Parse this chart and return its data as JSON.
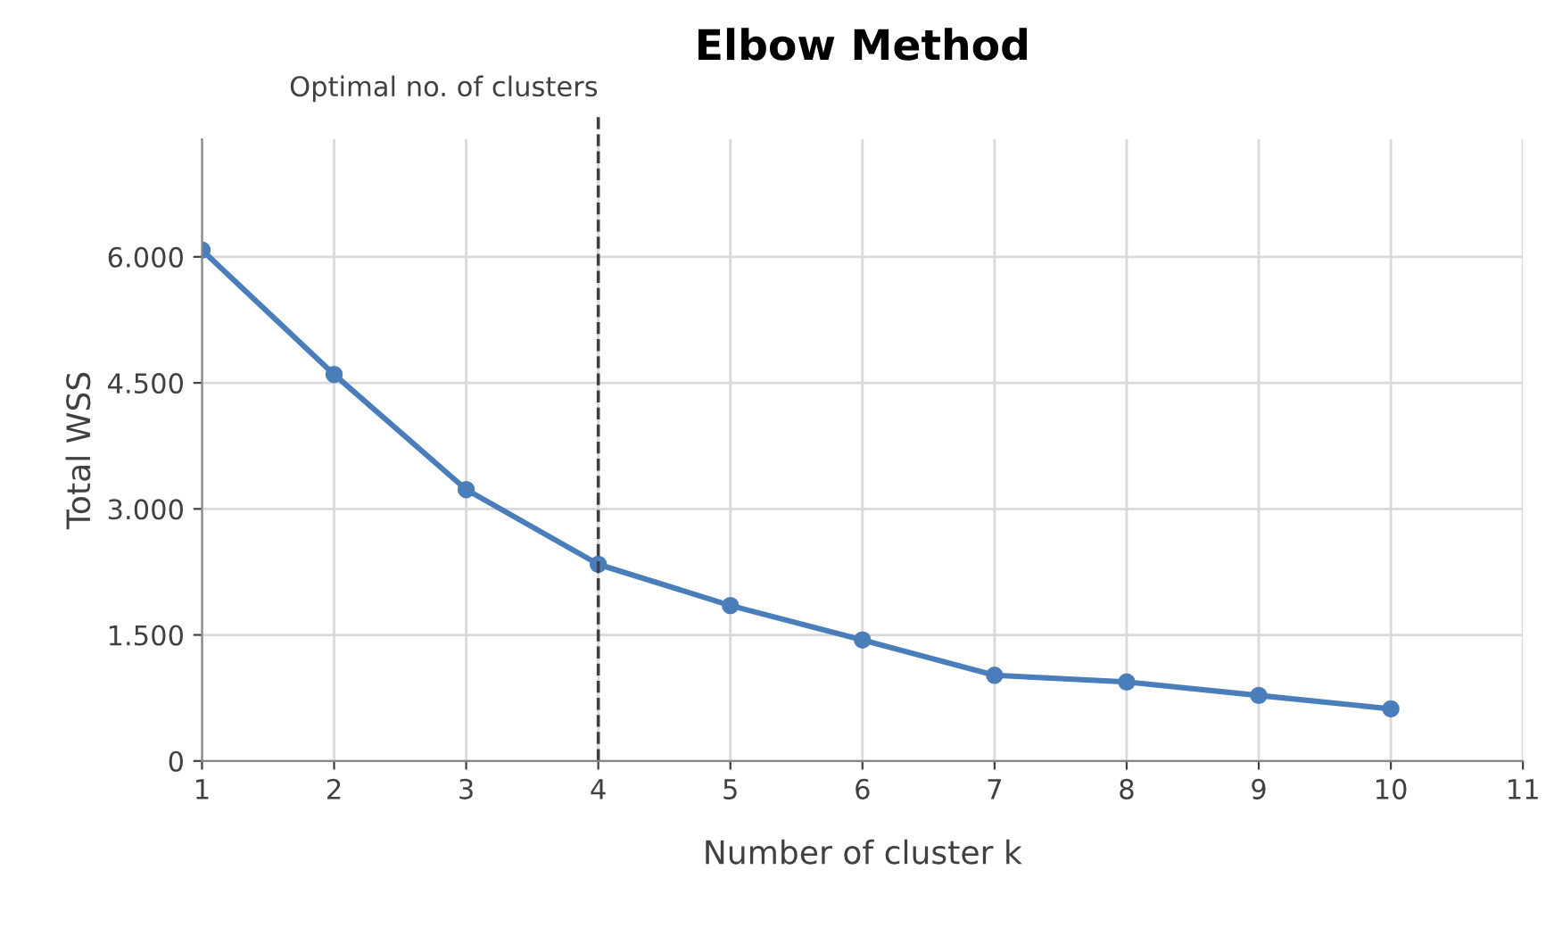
{
  "chart_data": {
    "type": "line",
    "title": "Elbow Method",
    "xlabel": "Number of cluster k",
    "ylabel": "Total WSS",
    "x": [
      1,
      2,
      3,
      4,
      5,
      6,
      7,
      8,
      9,
      10
    ],
    "series": [
      {
        "color": "#4a7ebb",
        "values": [
          6080,
          4600,
          3230,
          2340,
          1850,
          1440,
          1020,
          940,
          780,
          620
        ]
      }
    ],
    "xlim": [
      1,
      11
    ],
    "xticks": [
      1,
      2,
      3,
      4,
      5,
      6,
      7,
      8,
      9,
      10,
      11
    ],
    "ylim": [
      0,
      7400
    ],
    "yticks": [
      {
        "value": 0,
        "label": "0"
      },
      {
        "value": 1500,
        "label": "1.500"
      },
      {
        "value": 3000,
        "label": "3.000"
      },
      {
        "value": 4500,
        "label": "4.500"
      },
      {
        "value": 6000,
        "label": "6.000"
      }
    ],
    "ref_lines": [
      {
        "axis": "x",
        "value": 4,
        "label": "Optimal no. of clusters",
        "color": "#404040",
        "line_style": "dashed"
      }
    ],
    "grid": true,
    "marker": "circle",
    "line_style": "solid"
  }
}
